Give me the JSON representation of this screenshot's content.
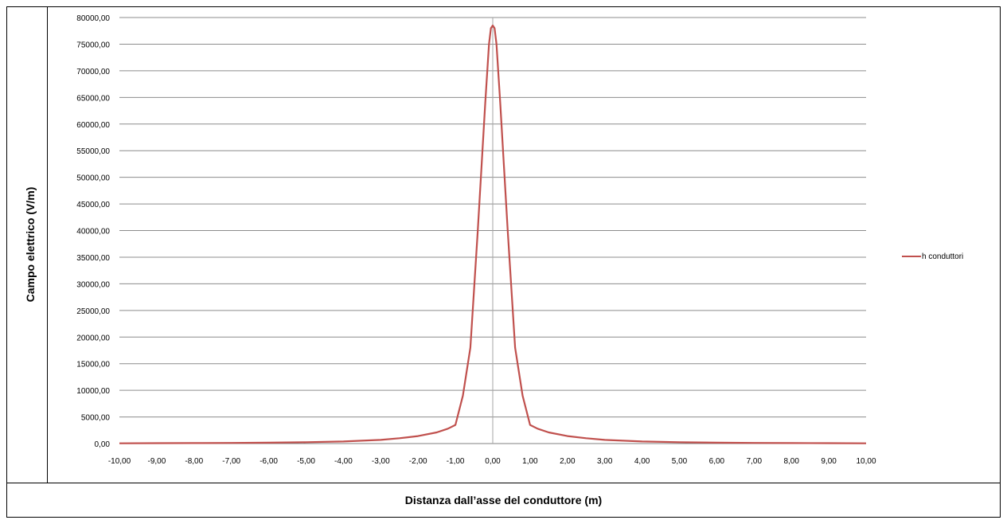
{
  "chart_data": {
    "type": "line",
    "ylabel": "Campo elettrico (V/m)",
    "xlabel": "Distanza dall’asse del conduttore (m)",
    "xlim": [
      -10,
      10
    ],
    "ylim": [
      0,
      80000
    ],
    "x_ticks": [
      "-10,00",
      "-9,00",
      "-8,00",
      "-7,00",
      "-6,00",
      "-5,00",
      "-4,00",
      "-3,00",
      "-2,00",
      "-1,00",
      "0,00",
      "1,00",
      "2,00",
      "3,00",
      "4,00",
      "5,00",
      "6,00",
      "7,00",
      "8,00",
      "9,00",
      "10,00"
    ],
    "y_ticks": [
      "0,00",
      "5000,00",
      "10000,00",
      "15000,00",
      "20000,00",
      "25000,00",
      "30000,00",
      "35000,00",
      "40000,00",
      "45000,00",
      "50000,00",
      "55000,00",
      "60000,00",
      "65000,00",
      "70000,00",
      "75000,00",
      "80000,00"
    ],
    "grid": true,
    "legend_position": "right",
    "series": [
      {
        "name": "h conduttori",
        "color": "#c0504d",
        "x": [
          -10,
          -9,
          -8,
          -7,
          -6,
          -5,
          -4,
          -3,
          -2.5,
          -2,
          -1.5,
          -1.2,
          -1,
          -0.8,
          -0.6,
          -0.4,
          -0.3,
          -0.2,
          -0.1,
          -0.05,
          0,
          0.05,
          0.1,
          0.2,
          0.3,
          0.4,
          0.6,
          0.8,
          1,
          1.2,
          1.5,
          2,
          2.5,
          3,
          4,
          5,
          6,
          7,
          8,
          9,
          10
        ],
        "values": [
          50,
          70,
          90,
          120,
          170,
          250,
          390,
          690,
          1000,
          1400,
          2100,
          2800,
          3500,
          9000,
          18000,
          40000,
          52000,
          64000,
          75000,
          78000,
          78500,
          78000,
          75000,
          64000,
          52000,
          40000,
          18000,
          9000,
          3500,
          2800,
          2100,
          1400,
          1000,
          690,
          390,
          250,
          170,
          120,
          90,
          70,
          50
        ]
      }
    ]
  }
}
